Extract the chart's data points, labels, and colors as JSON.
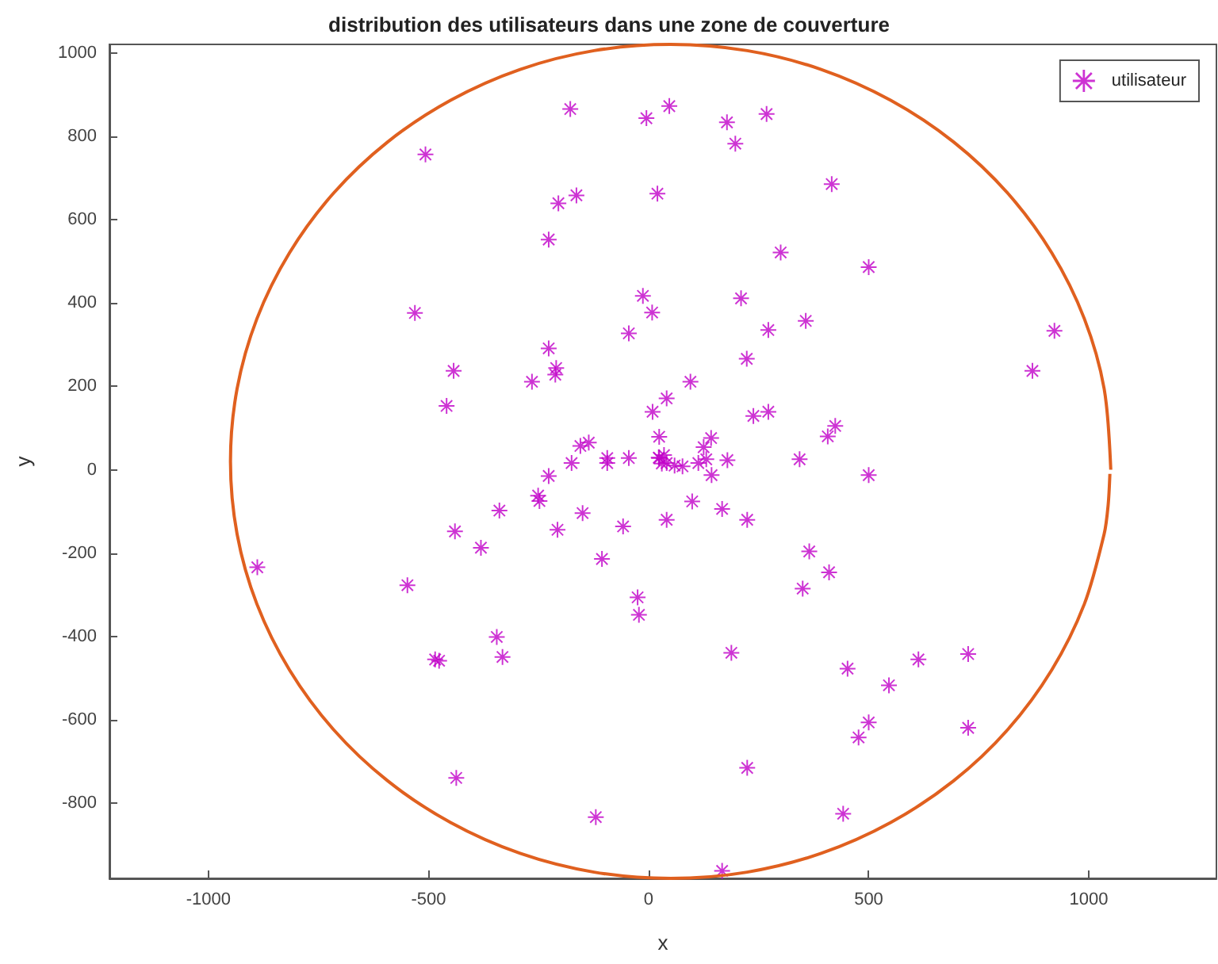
{
  "chart_data": {
    "type": "scatter",
    "title": "distribution des utilisateurs dans une zone de couverture",
    "xlabel": "x",
    "ylabel": "y",
    "xlim": [
      -1225,
      1290
    ],
    "ylim": [
      -980,
      1020
    ],
    "xticks": [
      -1000,
      -500,
      0,
      500,
      1000
    ],
    "yticks": [
      -800,
      -600,
      -400,
      -200,
      0,
      200,
      400,
      600,
      800,
      1000
    ],
    "grid": false,
    "legend": "top right",
    "marker": "star",
    "series": [
      {
        "name": "utilisateur",
        "color": "#c000c8",
        "x": [
          -178,
          -5,
          -507,
          -164,
          -205,
          20,
          -227,
          -531,
          -13,
          8,
          -45,
          -227,
          -210,
          -212,
          -443,
          -265,
          -459,
          9,
          24,
          -155,
          -136,
          -175,
          -94,
          -94,
          -45,
          24,
          30,
          -227,
          47,
          178,
          197,
          268,
          416,
          300,
          500,
          210,
          272,
          357,
          223,
          922,
          872,
          95,
          41,
          238,
          272,
          142,
          125,
          407,
          424,
          23,
          41,
          59,
          77,
          35,
          113,
          131,
          143,
          179,
          343,
          500,
          99,
          41,
          167,
          224,
          365,
          410,
          350,
          -25,
          -22,
          188,
          452,
          546,
          613,
          726,
          726,
          500,
          477,
          224,
          442,
          167,
          -251,
          -248,
          -339,
          -150,
          -58,
          -207,
          -440,
          -381,
          -106,
          -889,
          -548,
          -345,
          -485,
          -476,
          -332,
          -437,
          -120
        ],
        "values": [
          865,
          843,
          756,
          658,
          639,
          662,
          552,
          376,
          417,
          377,
          327,
          291,
          244,
          228,
          237,
          211,
          153,
          139,
          79,
          57,
          65,
          16,
          28,
          16,
          28,
          28,
          15,
          -15,
          872,
          833,
          782,
          853,
          685,
          521,
          486,
          411,
          335,
          357,
          266,
          333,
          237,
          211,
          171,
          129,
          139,
          76,
          54,
          80,
          105,
          29,
          16,
          10,
          8,
          35,
          16,
          25,
          -13,
          23,
          25,
          -13,
          -76,
          -120,
          -94,
          -120,
          -196,
          -246,
          -285,
          -306,
          -348,
          -439,
          -477,
          -517,
          -455,
          -442,
          -619,
          -606,
          -642,
          -715,
          -825,
          -962,
          -62,
          -75,
          -98,
          -104,
          -136,
          -144,
          -148,
          -187,
          -214,
          -234,
          -277,
          -401,
          -455,
          -458,
          -449,
          -739,
          -833
        ]
      },
      {
        "type": "line",
        "color": "#e0601f",
        "marker": "none",
        "x": [
          1050,
          1035,
          990,
          916,
          816,
          693,
          550,
          392,
          224,
          50,
          -124,
          -292,
          -450,
          -593,
          -716,
          -816,
          -890,
          -935,
          -950,
          -935,
          -890,
          -816,
          -716,
          -593,
          -450,
          -292,
          -124,
          50,
          224,
          392,
          550,
          693,
          816,
          916,
          990,
          1035,
          1044,
          1048
        ],
        "values": [
          0,
          194,
          362,
          520,
          663,
          786,
          886,
          960,
          1005,
          1020,
          1005,
          960,
          886,
          786,
          663,
          520,
          362,
          194,
          20,
          -154,
          -322,
          -480,
          -623,
          -746,
          -846,
          -920,
          -965,
          -980,
          -965,
          -920,
          -846,
          -746,
          -623,
          -480,
          -322,
          -154,
          -85,
          -10
        ]
      }
    ]
  }
}
